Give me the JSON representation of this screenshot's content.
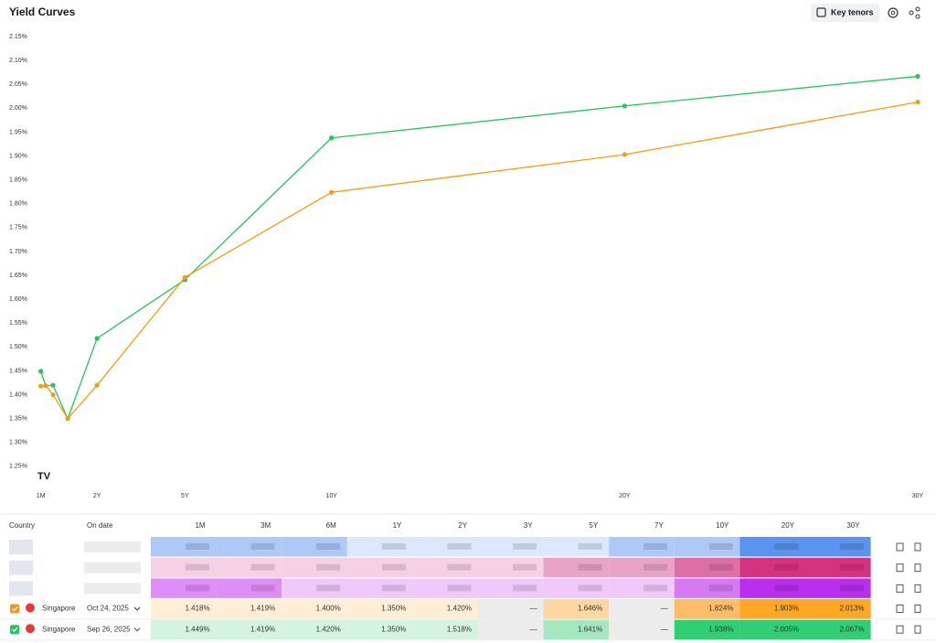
{
  "header": {
    "title": "Yield Curves",
    "button": "Key tenors"
  },
  "chart_data": {
    "type": "line",
    "x": [
      0.0833,
      0.25,
      0.5,
      1,
      2,
      5,
      10,
      20,
      30
    ],
    "xlim": [
      0,
      30
    ],
    "xticks": [
      {
        "value": 0.0833,
        "label": "1M"
      },
      {
        "value": 2,
        "label": "2Y"
      },
      {
        "value": 5,
        "label": "5Y"
      },
      {
        "value": 10,
        "label": "10Y"
      },
      {
        "value": 20,
        "label": "20Y"
      },
      {
        "value": 30,
        "label": "30Y"
      }
    ],
    "ylim": [
      1.2,
      2.2
    ],
    "yticks": [
      {
        "value": 1.25,
        "label": "1.25%"
      },
      {
        "value": 1.3,
        "label": "1.30%"
      },
      {
        "value": 1.35,
        "label": "1.35%"
      },
      {
        "value": 1.4,
        "label": "1.40%"
      },
      {
        "value": 1.45,
        "label": "1.45%"
      },
      {
        "value": 1.5,
        "label": "1.50%"
      },
      {
        "value": 1.55,
        "label": "1.55%"
      },
      {
        "value": 1.6,
        "label": "1.60%"
      },
      {
        "value": 1.65,
        "label": "1.65%"
      },
      {
        "value": 1.7,
        "label": "1.70%"
      },
      {
        "value": 1.75,
        "label": "1.75%"
      },
      {
        "value": 1.8,
        "label": "1.80%"
      },
      {
        "value": 1.85,
        "label": "1.85%"
      },
      {
        "value": 1.9,
        "label": "1.90%"
      },
      {
        "value": 1.95,
        "label": "1.95%"
      },
      {
        "value": 2.0,
        "label": "2.00%"
      },
      {
        "value": 2.05,
        "label": "2.05%"
      },
      {
        "value": 2.1,
        "label": "2.10%"
      },
      {
        "value": 2.15,
        "label": "2.15%"
      }
    ],
    "series": [
      {
        "color": "#f59e0b",
        "values": [
          1.418,
          1.419,
          1.4,
          1.35,
          1.42,
          1.646,
          1.824,
          1.903,
          2.013
        ]
      },
      {
        "color": "#22c55e",
        "values": [
          1.449,
          1.419,
          1.42,
          1.35,
          1.518,
          1.641,
          1.938,
          2.005,
          2.067
        ]
      }
    ]
  },
  "table": {
    "headers": [
      "Country",
      "On date"
    ],
    "columns": [
      "1M",
      "3M",
      "6M",
      "1Y",
      "2Y",
      "3Y",
      "5Y",
      "7Y",
      "10Y",
      "20Y",
      "30Y"
    ],
    "rows": [
      {
        "country": "Singapore",
        "date": "Oct 24, 2025",
        "color": "#f7941d",
        "cells": [
          "1.418%",
          "1.419%",
          "1.400%",
          "1.350%",
          "1.420%",
          "—",
          "1.646%",
          "—",
          "1.824%",
          "1.903%",
          "2.013%"
        ],
        "cell_colors": [
          "#ffeed6",
          "#ffeed6",
          "#ffeed6",
          "#ffeed6",
          "#ffeed6",
          "#ececec",
          "#fdd79f",
          "#ececec",
          "#fdbd68",
          "#fca726",
          "#fca726"
        ]
      },
      {
        "country": "Singapore",
        "date": "Sep 26, 2025",
        "color": "#22c55e",
        "cells": [
          "1.449%",
          "1.419%",
          "1.420%",
          "1.350%",
          "1.518%",
          "—",
          "1.641%",
          "—",
          "1.938%",
          "2.005%",
          "2.067%"
        ],
        "cell_colors": [
          "#d3f5e0",
          "#d3f5e0",
          "#d3f5e0",
          "#d3f5e0",
          "#d3f5e0",
          "#ececec",
          "#a3e8bf",
          "#ececec",
          "#30cf73",
          "#30cf73",
          "#30cf73"
        ]
      }
    ]
  }
}
